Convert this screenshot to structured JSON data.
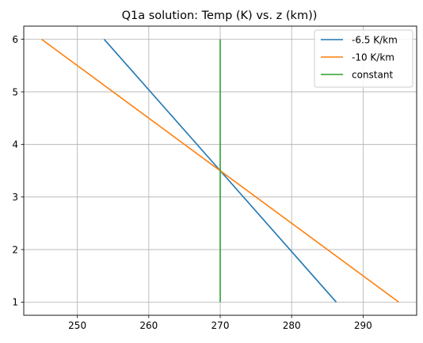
{
  "chart_data": {
    "type": "line",
    "title": "Q1a solution:  Temp (K) vs. z (km))",
    "xlabel": "",
    "ylabel": "",
    "xlim": [
      242.5,
      297.5
    ],
    "ylim": [
      0.75,
      6.25
    ],
    "xticks": [
      250,
      260,
      270,
      280,
      290
    ],
    "yticks": [
      1,
      2,
      3,
      4,
      5,
      6
    ],
    "grid": true,
    "legend_position": "top-right",
    "series": [
      {
        "name": "-6.5 K/km",
        "color": "#1f77b4",
        "x": [
          286.25,
          253.75
        ],
        "y": [
          1,
          6
        ]
      },
      {
        "name": "-10 K/km",
        "color": "#ff7f0e",
        "x": [
          295,
          245
        ],
        "y": [
          1,
          6
        ]
      },
      {
        "name": "constant",
        "color": "#2ca02c",
        "x": [
          270,
          270
        ],
        "y": [
          1,
          6
        ]
      }
    ]
  }
}
